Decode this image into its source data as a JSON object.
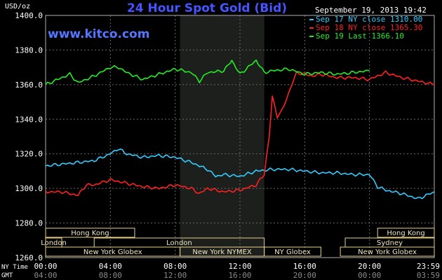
{
  "chart_data": {
    "type": "line",
    "title": "24 Hour Spot Gold (Bid)",
    "watermark": "www.kitco.com",
    "timestamp": "September 19, 2013 19:42",
    "y_unit_label": "USD/oz",
    "ylim": [
      1260,
      1400
    ],
    "y_ticks": [
      "1400.0",
      "1380.0",
      "1360.0",
      "1340.0",
      "1320.0",
      "1300.0",
      "1280.0",
      "1260.0"
    ],
    "x_range_hours": [
      0,
      24
    ],
    "ny_time_label": "NY Time",
    "gmt_label": "GMT",
    "ny_time_ticks": [
      "00:00",
      "04:00",
      "08:00",
      "12:00",
      "16:00",
      "20:00",
      "23:59"
    ],
    "gmt_ticks": [
      "04:00",
      "08:00",
      "12:00",
      "16:00",
      "20:00",
      "00:00",
      "03:59"
    ],
    "grid": true,
    "legend_position": "top-right",
    "series": [
      {
        "name": "Sep 17 NY close 1310.00",
        "color": "#33ccff",
        "x": [
          0,
          1,
          2,
          3,
          4,
          4.5,
          5,
          6,
          7,
          8,
          9,
          10,
          10.5,
          11,
          12,
          13,
          14,
          15,
          16,
          17,
          18,
          19,
          20,
          20.5,
          21,
          22,
          23,
          24
        ],
        "y": [
          1313,
          1314,
          1315,
          1316,
          1320,
          1323,
          1320,
          1318,
          1319,
          1318,
          1315,
          1311,
          1307,
          1308,
          1307,
          1310,
          1311,
          1311,
          1310,
          1309,
          1309,
          1308,
          1308,
          1301,
          1299,
          1297,
          1294,
          1298
        ]
      },
      {
        "name": "Sep 18 NY close 1365.30",
        "color": "#ff2020",
        "x": [
          0,
          1,
          2,
          2.5,
          3,
          4,
          5,
          6,
          7,
          8,
          9,
          9.5,
          10,
          11,
          12,
          13,
          13.5,
          13.8,
          14,
          14.3,
          14.6,
          15,
          15.5,
          16,
          16.5,
          17,
          18,
          19,
          20,
          21,
          22,
          23,
          24
        ],
        "y": [
          1298,
          1298,
          1296,
          1302,
          1302,
          1305,
          1303,
          1301,
          1300,
          1302,
          1300,
          1297,
          1300,
          1298,
          1299,
          1302,
          1308,
          1330,
          1353,
          1341,
          1345,
          1355,
          1367,
          1366,
          1365,
          1366,
          1364,
          1364,
          1363,
          1367,
          1364,
          1362,
          1360
        ]
      },
      {
        "name": "Sep 19 Last 1366.10",
        "color": "#22ee22",
        "x": [
          0,
          1,
          1.5,
          2,
          3,
          4,
          4.5,
          5,
          6,
          7,
          8,
          9,
          9.5,
          10,
          11,
          11.5,
          12,
          13,
          13.5,
          14,
          15,
          16,
          17,
          18,
          19,
          20
        ],
        "y": [
          1360,
          1364,
          1366,
          1361,
          1365,
          1370,
          1370,
          1367,
          1363,
          1366,
          1369,
          1367,
          1362,
          1367,
          1368,
          1374,
          1366,
          1374,
          1367,
          1368,
          1369,
          1366,
          1367,
          1366,
          1367,
          1368
        ]
      }
    ],
    "session_rows": [
      [
        {
          "label": "Hong Kong",
          "start": 0,
          "end": 5.5
        },
        {
          "label": "Hong Kong",
          "start": 20.5,
          "end": 24
        }
      ],
      [
        {
          "label": "London",
          "start": 0,
          "end": 1
        },
        {
          "label": "London",
          "start": 3,
          "end": 13.5
        },
        {
          "label": "Sydney",
          "start": 18.5,
          "end": 24
        }
      ],
      [
        {
          "label": "New York Globex",
          "start": 0,
          "end": 8.3
        },
        {
          "label": "New York NYMEX",
          "start": 8.3,
          "end": 13.5
        },
        {
          "label": "NY Globex",
          "start": 13.5,
          "end": 17
        },
        {
          "label": "New York Globex",
          "start": 18.2,
          "end": 24
        }
      ]
    ],
    "highlight_band_hours": [
      8.3,
      13.5
    ]
  }
}
